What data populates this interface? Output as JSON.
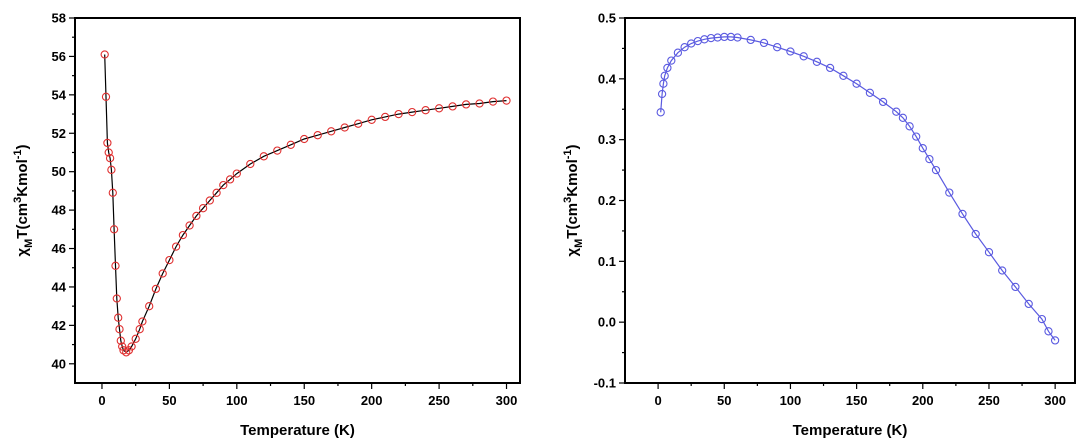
{
  "chart_data": [
    {
      "type": "scatter",
      "xlabel": "Temperature (K)",
      "ylabel": {
        "prefix": "χ",
        "sub": "M",
        "mid": "T(cm",
        "sup1": "3",
        "mid2": "Kmol",
        "sup2": "-1",
        "suffix": ")"
      },
      "xlim": [
        -20,
        310
      ],
      "ylim": [
        39,
        58
      ],
      "xticks": [
        0,
        50,
        100,
        150,
        200,
        250,
        300
      ],
      "yticks": [
        40,
        42,
        44,
        46,
        48,
        50,
        52,
        54,
        56,
        58
      ],
      "marker_color": "#e03030",
      "line_color": "#000000",
      "series": [
        {
          "x": [
            2,
            3,
            4,
            5,
            6,
            7,
            8,
            9,
            10,
            11,
            12,
            13,
            14,
            15,
            16,
            18,
            20,
            22,
            25,
            28,
            30,
            35,
            40,
            45,
            50,
            55,
            60,
            65,
            70,
            75,
            80,
            85,
            90,
            95,
            100,
            110,
            120,
            130,
            140,
            150,
            160,
            170,
            180,
            190,
            200,
            210,
            220,
            230,
            240,
            250,
            260,
            270,
            280,
            290,
            300
          ],
          "y": [
            56.1,
            53.9,
            51.5,
            51.0,
            50.7,
            50.1,
            48.9,
            47.0,
            45.1,
            43.4,
            42.4,
            41.8,
            41.2,
            40.9,
            40.7,
            40.6,
            40.7,
            40.9,
            41.3,
            41.8,
            42.2,
            43.0,
            43.9,
            44.7,
            45.4,
            46.1,
            46.7,
            47.2,
            47.7,
            48.1,
            48.5,
            48.9,
            49.3,
            49.6,
            49.9,
            50.4,
            50.8,
            51.1,
            51.4,
            51.7,
            51.9,
            52.1,
            52.3,
            52.5,
            52.7,
            52.85,
            53.0,
            53.1,
            53.2,
            53.3,
            53.4,
            53.5,
            53.55,
            53.65,
            53.7
          ]
        }
      ]
    },
    {
      "type": "scatter",
      "xlabel": "Temperature (K)",
      "ylabel": {
        "prefix": "χ",
        "sub": "M",
        "mid": "T(cm",
        "sup1": "3",
        "mid2": "Kmol",
        "sup2": "-1",
        "suffix": ")"
      },
      "xlim": [
        -25,
        315
      ],
      "ylim": [
        -0.1,
        0.5
      ],
      "xticks": [
        0,
        50,
        100,
        150,
        200,
        250,
        300
      ],
      "yticks": [
        -0.1,
        0.0,
        0.1,
        0.2,
        0.3,
        0.4,
        0.5
      ],
      "ytick_labels": [
        "-0.1",
        "0.0",
        "0.1",
        "0.2",
        "0.3",
        "0.4",
        "0.5"
      ],
      "marker_color": "#5a5ae0",
      "line_color": "#5a5ae0",
      "series": [
        {
          "x": [
            2,
            3,
            4,
            5,
            7,
            10,
            15,
            20,
            25,
            30,
            35,
            40,
            45,
            50,
            55,
            60,
            70,
            80,
            90,
            100,
            110,
            120,
            130,
            140,
            150,
            160,
            170,
            180,
            185,
            190,
            195,
            200,
            205,
            210,
            220,
            230,
            240,
            250,
            260,
            270,
            280,
            290,
            295,
            300
          ],
          "y": [
            0.345,
            0.375,
            0.392,
            0.405,
            0.418,
            0.43,
            0.443,
            0.452,
            0.458,
            0.462,
            0.465,
            0.467,
            0.468,
            0.469,
            0.469,
            0.468,
            0.464,
            0.459,
            0.452,
            0.445,
            0.437,
            0.428,
            0.418,
            0.405,
            0.392,
            0.377,
            0.362,
            0.346,
            0.336,
            0.322,
            0.305,
            0.286,
            0.268,
            0.25,
            0.213,
            0.178,
            0.145,
            0.115,
            0.085,
            0.058,
            0.03,
            0.005,
            -0.015,
            -0.03
          ]
        }
      ]
    }
  ]
}
